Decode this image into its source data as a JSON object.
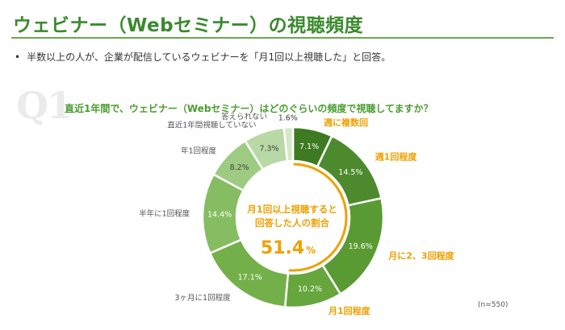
{
  "header": {
    "title": "ウェビナー（Webセミナー）の視聴頻度",
    "bullet_symbol": "•",
    "bullet_text": "半数以上の人が、企業が配信しているウェビナーを「月1回以上視聴した」と回答。"
  },
  "question": {
    "number": "Q1",
    "text": "直近1年間で、ウェビナー（Webセミナー）はどのぐらいの頻度で視聴してますか？"
  },
  "center": {
    "line1": "月1回以上視聴すると",
    "line2": "回答した人の割合",
    "value": "51.4",
    "unit": "%"
  },
  "footnote": "(n=550)",
  "colors": {
    "title": "#3a8a2e",
    "accent_orange": "#f0a000",
    "grey_label": "#555555"
  },
  "chart_data": {
    "type": "pie",
    "donut": true,
    "slices": [
      {
        "label": "週に複数回",
        "value": 7.1,
        "display": "7.1%",
        "color": "#3d7a22",
        "highlight": true
      },
      {
        "label": "週1回程度",
        "value": 14.5,
        "display": "14.5%",
        "color": "#4d8a2e",
        "highlight": true
      },
      {
        "label": "月に2、3回程度",
        "value": 19.6,
        "display": "19.6%",
        "color": "#5a9a33",
        "highlight": true
      },
      {
        "label": "月1回程度",
        "value": 10.2,
        "display": "10.2%",
        "color": "#66a63c",
        "highlight": true
      },
      {
        "label": "3ヶ月に1回程度",
        "value": 17.1,
        "display": "17.1%",
        "color": "#74b04a",
        "highlight": false
      },
      {
        "label": "半年に1回程度",
        "value": 14.4,
        "display": "14.4%",
        "color": "#86bd62",
        "highlight": false
      },
      {
        "label": "年1回程度",
        "value": 8.2,
        "display": "8.2%",
        "color": "#9ecb82",
        "highlight": false
      },
      {
        "label": "直近1年間視聴していない",
        "value": 7.3,
        "display": "7.3%",
        "color": "#b8d9a5",
        "highlight": false
      },
      {
        "label": "答えられない",
        "value": 1.6,
        "display": "1.6%",
        "color": "#d4e8c7",
        "highlight": false
      }
    ],
    "highlight_total": 51.4
  }
}
